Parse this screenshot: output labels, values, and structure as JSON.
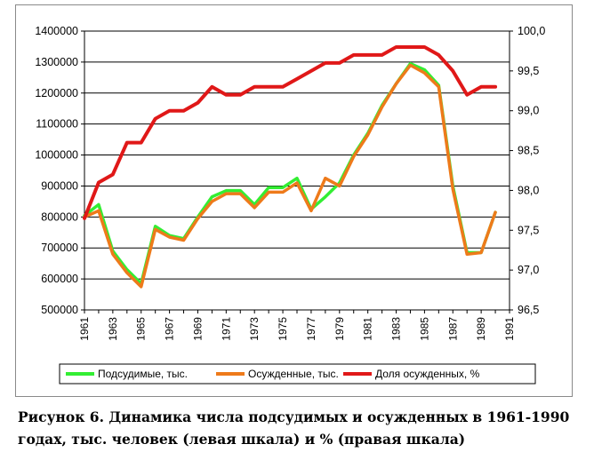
{
  "caption": "Рисунок 6. Динамика числа подсудимых и осужденных в 1961-1990 годах, тыс. человек (левая шкала) и % (правая шкала)",
  "chart_data": {
    "type": "line",
    "x": [
      1961,
      1962,
      1963,
      1964,
      1965,
      1966,
      1967,
      1968,
      1969,
      1970,
      1971,
      1972,
      1973,
      1974,
      1975,
      1976,
      1977,
      1978,
      1979,
      1980,
      1981,
      1982,
      1983,
      1984,
      1985,
      1986,
      1987,
      1988,
      1989,
      1990
    ],
    "x_ticks": [
      "1961",
      "1963",
      "1965",
      "1967",
      "1969",
      "1971",
      "1973",
      "1975",
      "1977",
      "1979",
      "1981",
      "1983",
      "1985",
      "1987",
      "1989",
      "1991"
    ],
    "left_axis": {
      "ylim": [
        500000,
        1400000
      ],
      "ticks": [
        "500000",
        "600000",
        "700000",
        "800000",
        "900000",
        "1000000",
        "1100000",
        "1200000",
        "1300000",
        "1400000"
      ]
    },
    "right_axis": {
      "ylim": [
        96.5,
        100.0
      ],
      "ticks": [
        "96,5",
        "97,0",
        "97,5",
        "98,0",
        "98,5",
        "99,0",
        "99,5",
        "100,0"
      ]
    },
    "grid": "horizontal",
    "legend_position": "bottom",
    "series": [
      {
        "name": "Подсудимые, тыс.",
        "axis": "left",
        "color": "#33ee33",
        "values": [
          805000,
          840000,
          690000,
          630000,
          585000,
          770000,
          740000,
          730000,
          800000,
          865000,
          885000,
          885000,
          840000,
          895000,
          895000,
          925000,
          825000,
          865000,
          910000,
          1000000,
          1070000,
          1160000,
          1230000,
          1295000,
          1275000,
          1225000,
          900000,
          685000,
          685000,
          815000
        ]
      },
      {
        "name": "Осужденные, тыс.",
        "axis": "left",
        "color": "#ee7a1a",
        "values": [
          800000,
          820000,
          680000,
          620000,
          575000,
          760000,
          735000,
          725000,
          795000,
          850000,
          875000,
          875000,
          830000,
          880000,
          880000,
          910000,
          820000,
          925000,
          900000,
          995000,
          1065000,
          1155000,
          1230000,
          1290000,
          1265000,
          1220000,
          890000,
          680000,
          685000,
          815000
        ]
      },
      {
        "name": "Доля осужденных, %",
        "axis": "right",
        "color": "#e01818",
        "values": [
          97.65,
          98.1,
          98.2,
          98.6,
          98.6,
          98.9,
          99.0,
          99.0,
          99.1,
          99.3,
          99.2,
          99.2,
          99.3,
          99.3,
          99.3,
          99.4,
          99.5,
          99.6,
          99.6,
          99.7,
          99.7,
          99.7,
          99.8,
          99.8,
          99.8,
          99.7,
          99.5,
          99.2,
          99.3,
          99.3
        ]
      }
    ]
  }
}
